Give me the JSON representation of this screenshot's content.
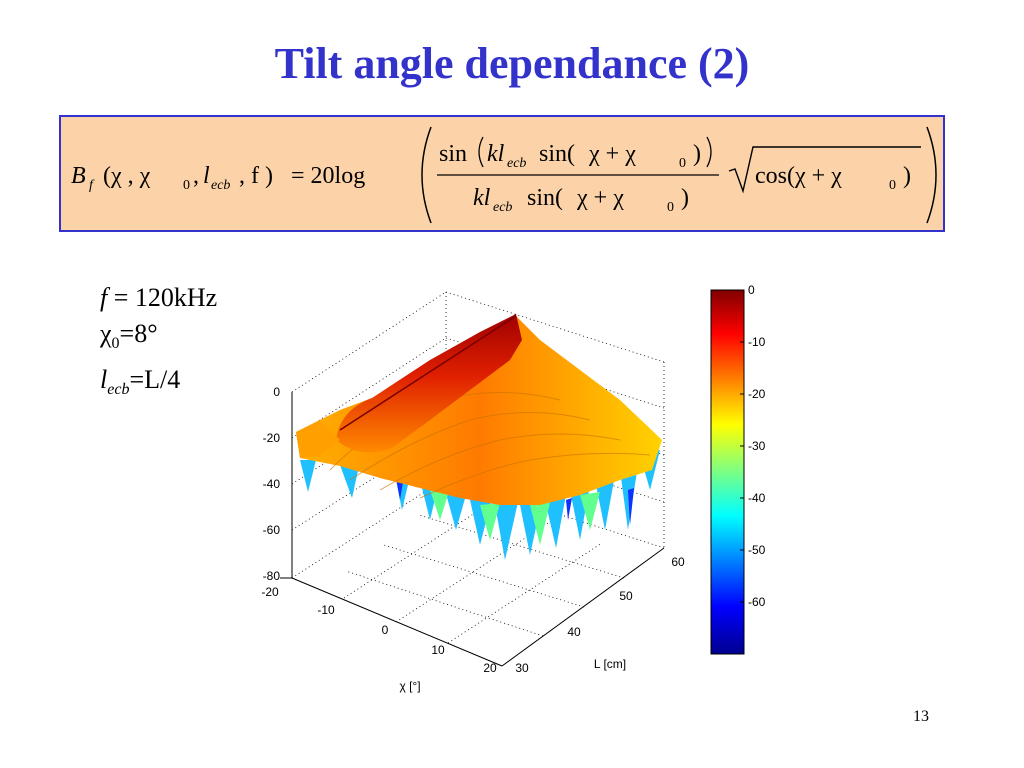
{
  "slide": {
    "title": "Tilt angle dependance (2)",
    "page_number": "13"
  },
  "formula": {
    "lhs_symbol": "B",
    "lhs_subscript": "f",
    "lhs_args": "(χ , χ",
    "chi0_sub": "0",
    "lecb_l": "l",
    "lecb_sub": "ecb",
    "f_arg": ", f )",
    "equals_20log": "= 20log",
    "num_sin": "sin",
    "num_kl": "kl",
    "num_sin2": "sin(",
    "num_chi": "χ + χ",
    "den_kl": "kl",
    "den_sin": "sin(",
    "den_chi": "χ + χ",
    "sqrt_body": "cos(χ + χ",
    "close_paren": ")"
  },
  "parameters": {
    "f_label": "f",
    "f_value": " = 120kHz",
    "chi0_label": "χ",
    "chi0_sub": "0",
    "chi0_value": "=8°",
    "lecb_label": "l",
    "lecb_sub": "ecb",
    "lecb_value": "=L/4"
  },
  "chart_data": {
    "type": "surface",
    "z_axis_ticks": [
      "0",
      "-20",
      "-40",
      "-60",
      "-80"
    ],
    "z_range": [
      -80,
      0
    ],
    "chi_axis_label": "χ [°]",
    "chi_ticks": [
      "-20",
      "-10",
      "0",
      "10",
      "20"
    ],
    "chi_range": [
      -20,
      20
    ],
    "L_axis_label": "L [cm]",
    "L_ticks": [
      "30",
      "40",
      "50",
      "60"
    ],
    "L_range": [
      30,
      60
    ],
    "colorbar_ticks": [
      "0",
      "-10",
      "-20",
      "-30",
      "-40",
      "-50",
      "-60"
    ],
    "colorbar_range": [
      -70,
      0
    ],
    "colormap": "jet",
    "grid": true
  }
}
